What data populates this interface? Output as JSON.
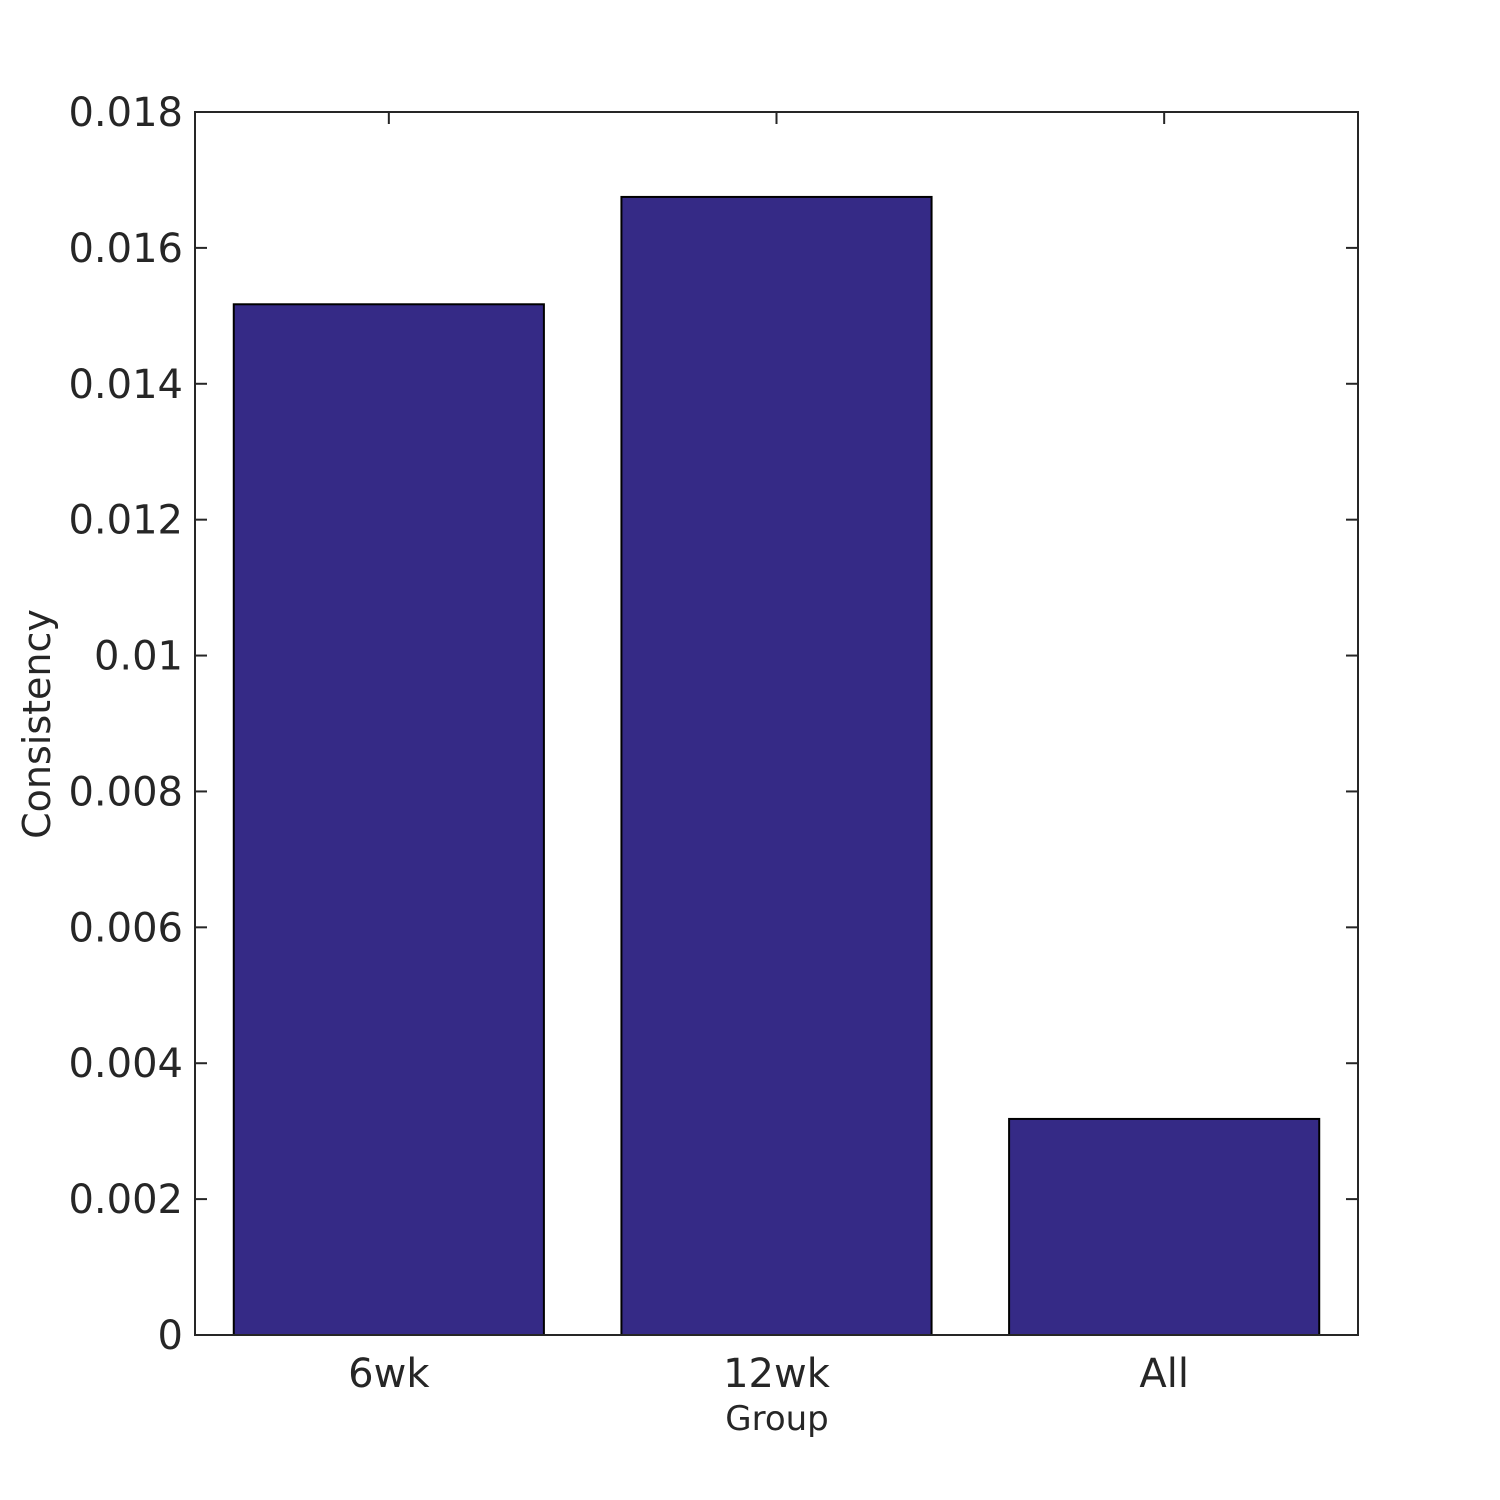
{
  "chart_data": {
    "type": "bar",
    "xlabel": "Group",
    "ylabel": "Consistency",
    "categories": [
      "6wk",
      "12wk",
      "All"
    ],
    "values": [
      0.01517,
      0.01675,
      0.00318
    ],
    "color": "#352a86",
    "edgecolor": "#000000",
    "ylim": [
      0,
      0.018
    ],
    "yticks": [
      0,
      0.002,
      0.004,
      0.006,
      0.008,
      0.01,
      0.012,
      0.014,
      0.016,
      0.018
    ]
  }
}
